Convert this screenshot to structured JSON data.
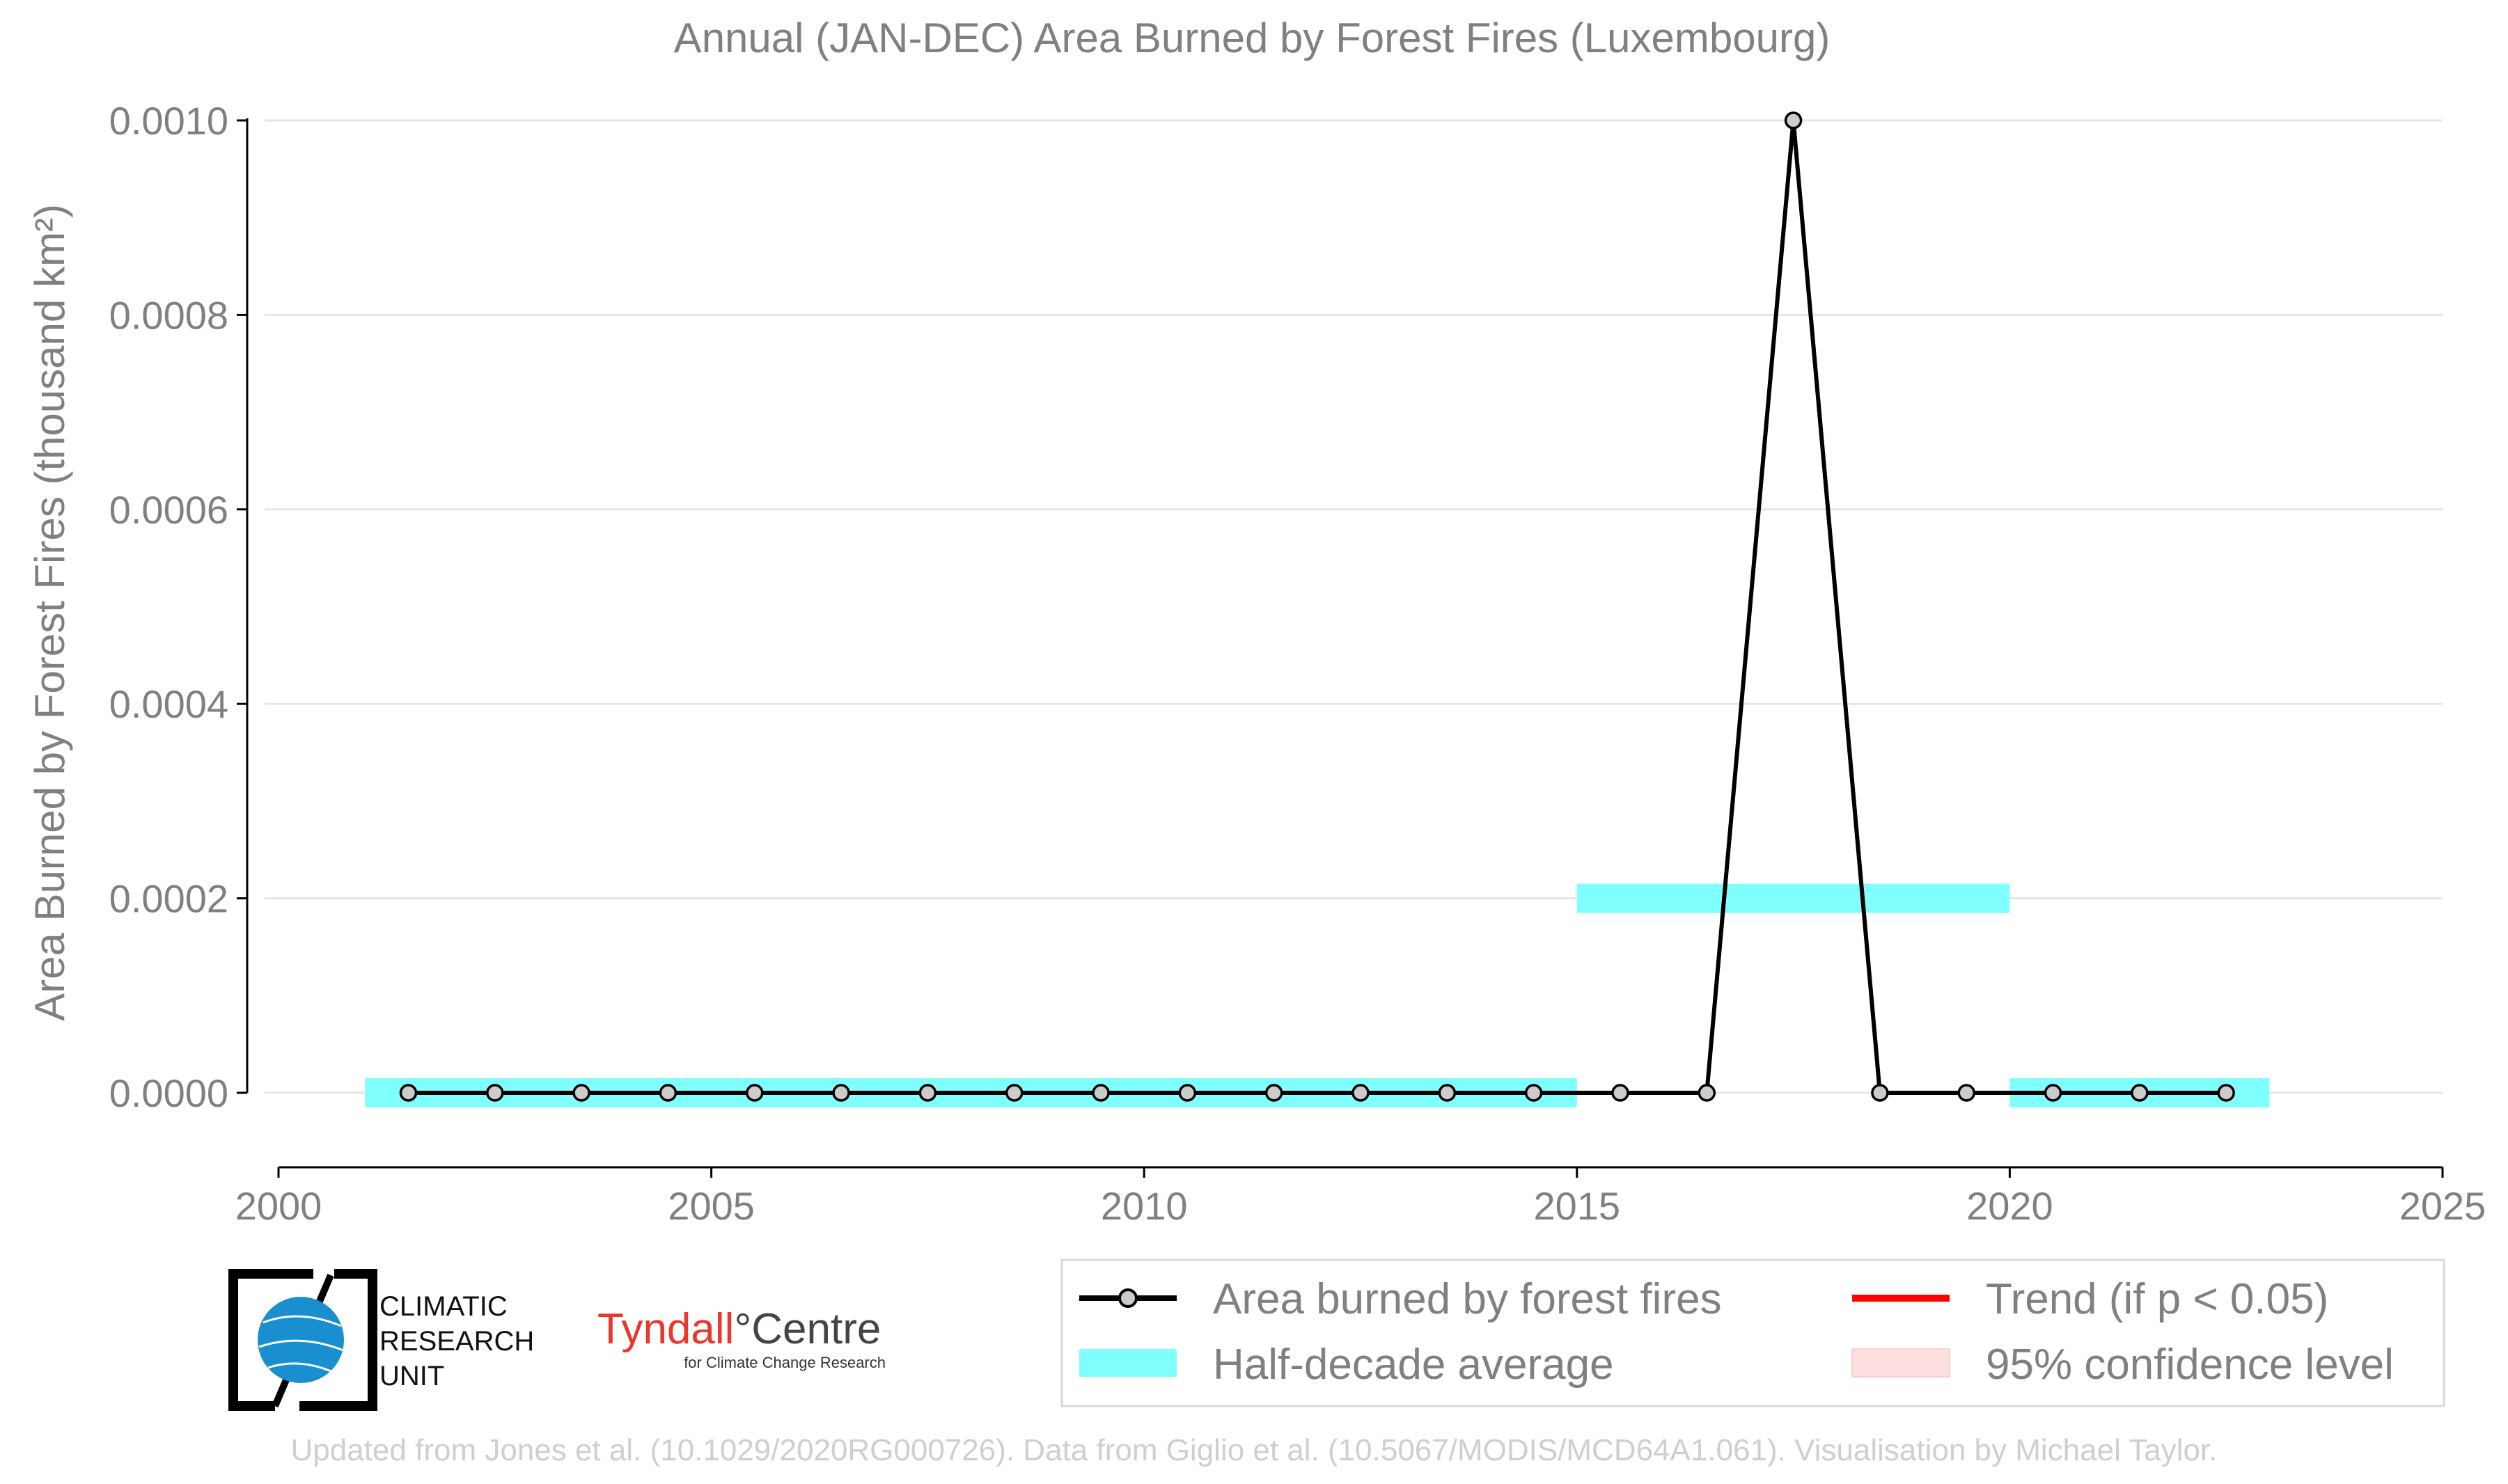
{
  "chart_data": {
    "type": "line",
    "title": "Annual (JAN-DEC) Area Burned by Forest Fires (Luxembourg)",
    "xlabel": "",
    "ylabel": "Area Burned by Forest Fires (thousand km²)",
    "xlim": [
      2000,
      2025
    ],
    "ylim": [
      -8e-05,
      0.001
    ],
    "xticks": [
      "2000",
      "2005",
      "2010",
      "2015",
      "2020",
      "2025"
    ],
    "yticks": [
      "0.0000",
      "0.0002",
      "0.0004",
      "0.0006",
      "0.0008",
      "0.0010"
    ],
    "grid": "horizontal",
    "legend_position": "bottom-right",
    "series": [
      {
        "name": "Area burned by forest fires",
        "color": "#000000",
        "marker_fill": "#cccccc",
        "x": [
          2001.5,
          2002.5,
          2003.5,
          2004.5,
          2005.5,
          2006.5,
          2007.5,
          2008.5,
          2009.5,
          2010.5,
          2011.5,
          2012.5,
          2013.5,
          2014.5,
          2015.5,
          2016.5,
          2017.5,
          2018.5,
          2019.5,
          2020.5,
          2021.5,
          2022.5
        ],
        "y": [
          0,
          0,
          0,
          0,
          0,
          0,
          0,
          0,
          0,
          0,
          0,
          0,
          0,
          0,
          0,
          0,
          0.001,
          0,
          0,
          0,
          0,
          0
        ]
      }
    ],
    "half_decade_average": {
      "name": "Half-decade average",
      "color": "#80ffff",
      "segments": [
        {
          "x0": 2001,
          "x1": 2015,
          "y": 0.0
        },
        {
          "x0": 2015,
          "x1": 2020,
          "y": 0.0002
        },
        {
          "x0": 2020,
          "x1": 2023,
          "y": 0.0
        }
      ]
    },
    "legend": {
      "items": [
        {
          "label": "Area burned by forest fires",
          "kind": "line-marker",
          "color": "#000000"
        },
        {
          "label": "Trend (if p < 0.05)",
          "kind": "line",
          "color": "#ff0000"
        },
        {
          "label": "Half-decade average",
          "kind": "patch",
          "color": "#80ffff"
        },
        {
          "label": "95% confidence level",
          "kind": "patch",
          "color": "#ffe0e0"
        }
      ]
    }
  },
  "logos": {
    "cru_line1": "CLIMATIC",
    "cru_line2": "RESEARCH",
    "cru_line3": "UNIT",
    "tyndall_name": "Tyndall",
    "tyndall_degree": "°",
    "tyndall_centre": "Centre",
    "tyndall_sub": "for Climate Change Research"
  },
  "credit": "Updated from Jones et al. (10.1029/2020RG000726). Data from Giglio et al. (10.5067/MODIS/MCD64A1.061). Visualisation by Michael Taylor."
}
